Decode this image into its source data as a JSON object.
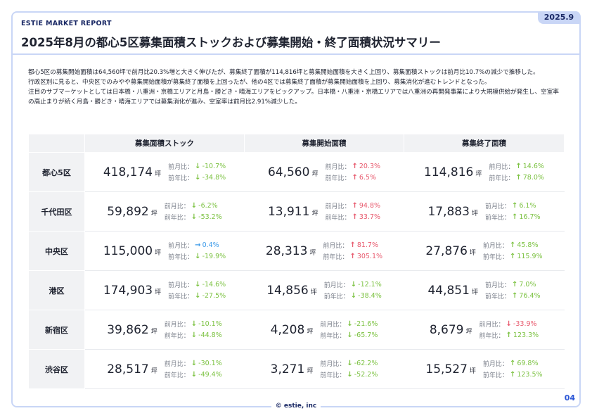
{
  "brand": "ESTIE MARKET REPORT",
  "date": "2025.9",
  "title": "2025年8月の都心5区募集面積ストックおよび募集開始・終了面積状況サマリー",
  "summary": [
    "都心5区の募集開始面積は64,560坪で前月比20.3%増と大きく伸びたが、募集終了面積が114,816坪と募集開始面積を大きく上回り、募集面積ストックは前月比10.7%の減少で推移した。",
    "行政区別に見ると、中央区でのみやや募集開始面積が募集終了面積を上回ったが、他の4区では募集終了面積が募集開始面積を上回り、募集消化が進むトレンドとなった。",
    "注目のサブマーケットとしては日本橋・八重洲・京橋エリアと月島・勝どき・晴海エリアをピックアップ。日本橋・八重洲・京橋エリアでは八重洲の再開発事業により大規模供給が発生し、空室率の高止まりが続く月島・勝どき・晴海エリアでは募集消化が進み、空室率は前月比2.91%減少した。"
  ],
  "table": {
    "columns": [
      "募集面積ストック",
      "募集開始面積",
      "募集終了面積"
    ],
    "mom_label": "前月比：",
    "yoy_label": "前年比：",
    "unit": "坪",
    "colors": {
      "up": "#e85a6e",
      "down": "#7cc242",
      "flat": "#3d9be9"
    },
    "rows": [
      {
        "area": "都心5区",
        "cells": [
          {
            "value": "418,174",
            "mom": {
              "dir": "down",
              "color": "down",
              "text": "-10.7%"
            },
            "yoy": {
              "dir": "down",
              "color": "down",
              "text": "-34.8%"
            }
          },
          {
            "value": "64,560",
            "mom": {
              "dir": "up",
              "color": "up",
              "text": "20.3%"
            },
            "yoy": {
              "dir": "up",
              "color": "up",
              "text": "6.5%"
            }
          },
          {
            "value": "114,816",
            "mom": {
              "dir": "up",
              "color": "down",
              "text": "14.6%"
            },
            "yoy": {
              "dir": "up",
              "color": "down",
              "text": "78.0%"
            }
          }
        ]
      },
      {
        "area": "千代田区",
        "cells": [
          {
            "value": "59,892",
            "mom": {
              "dir": "down",
              "color": "down",
              "text": "-6.2%"
            },
            "yoy": {
              "dir": "down",
              "color": "down",
              "text": "-53.2%"
            }
          },
          {
            "value": "13,911",
            "mom": {
              "dir": "up",
              "color": "up",
              "text": "94.8%"
            },
            "yoy": {
              "dir": "up",
              "color": "up",
              "text": "33.7%"
            }
          },
          {
            "value": "17,883",
            "mom": {
              "dir": "up",
              "color": "down",
              "text": "6.1%"
            },
            "yoy": {
              "dir": "up",
              "color": "down",
              "text": "16.7%"
            }
          }
        ]
      },
      {
        "area": "中央区",
        "cells": [
          {
            "value": "115,000",
            "mom": {
              "dir": "flat",
              "color": "flat",
              "text": "0.4%"
            },
            "yoy": {
              "dir": "down",
              "color": "down",
              "text": "-19.9%"
            }
          },
          {
            "value": "28,313",
            "mom": {
              "dir": "up",
              "color": "up",
              "text": "81.7%"
            },
            "yoy": {
              "dir": "up",
              "color": "up",
              "text": "305.1%"
            }
          },
          {
            "value": "27,876",
            "mom": {
              "dir": "up",
              "color": "down",
              "text": "45.8%"
            },
            "yoy": {
              "dir": "up",
              "color": "down",
              "text": "115.9%"
            }
          }
        ]
      },
      {
        "area": "港区",
        "cells": [
          {
            "value": "174,903",
            "mom": {
              "dir": "down",
              "color": "down",
              "text": "-14.6%"
            },
            "yoy": {
              "dir": "down",
              "color": "down",
              "text": "-27.5%"
            }
          },
          {
            "value": "14,856",
            "mom": {
              "dir": "down",
              "color": "down",
              "text": "-12.1%"
            },
            "yoy": {
              "dir": "down",
              "color": "down",
              "text": "-38.4%"
            }
          },
          {
            "value": "44,851",
            "mom": {
              "dir": "up",
              "color": "down",
              "text": "7.0%"
            },
            "yoy": {
              "dir": "up",
              "color": "down",
              "text": "76.4%"
            }
          }
        ]
      },
      {
        "area": "新宿区",
        "cells": [
          {
            "value": "39,862",
            "mom": {
              "dir": "down",
              "color": "down",
              "text": "-10.1%"
            },
            "yoy": {
              "dir": "down",
              "color": "down",
              "text": "-44.8%"
            }
          },
          {
            "value": "4,208",
            "mom": {
              "dir": "down",
              "color": "down",
              "text": "-21.6%"
            },
            "yoy": {
              "dir": "down",
              "color": "down",
              "text": "-65.7%"
            }
          },
          {
            "value": "8,679",
            "mom": {
              "dir": "down",
              "color": "up",
              "text": "-33.9%"
            },
            "yoy": {
              "dir": "up",
              "color": "down",
              "text": "123.3%"
            }
          }
        ]
      },
      {
        "area": "渋谷区",
        "cells": [
          {
            "value": "28,517",
            "mom": {
              "dir": "down",
              "color": "down",
              "text": "-30.1%"
            },
            "yoy": {
              "dir": "down",
              "color": "down",
              "text": "-49.4%"
            }
          },
          {
            "value": "3,271",
            "mom": {
              "dir": "down",
              "color": "down",
              "text": "-62.2%"
            },
            "yoy": {
              "dir": "down",
              "color": "down",
              "text": "-52.2%"
            }
          },
          {
            "value": "15,527",
            "mom": {
              "dir": "up",
              "color": "down",
              "text": "69.8%"
            },
            "yoy": {
              "dir": "up",
              "color": "down",
              "text": "123.5%"
            }
          }
        ]
      }
    ]
  },
  "footer": "© estie, inc",
  "page_number": "04"
}
